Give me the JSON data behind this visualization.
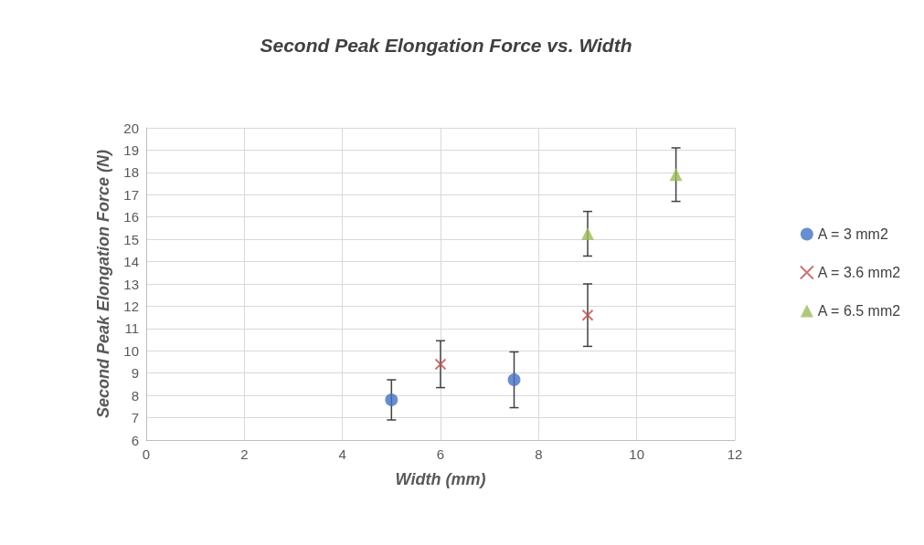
{
  "chart_data": {
    "type": "scatter",
    "title": "Second Peak Elongation Force vs. Width",
    "xlabel": "Width (mm)",
    "ylabel": "Second Peak Elongation Force (N)",
    "series": [
      {
        "name": "A = 3 mm2",
        "color": "#4472c4",
        "marker": "circle",
        "x": [
          5,
          7.5
        ],
        "values": [
          7.8,
          8.7
        ],
        "errors": [
          0.9,
          1.25
        ]
      },
      {
        "name": "A = 3.6 mm2",
        "color": "#c0504d",
        "marker": "cross",
        "x": [
          6,
          9
        ],
        "values": [
          9.4,
          11.6
        ],
        "errors": [
          1.05,
          1.4
        ]
      },
      {
        "name": "A = 6.5 mm2",
        "color": "#9bbb59",
        "marker": "triangle",
        "x": [
          9,
          10.8
        ],
        "values": [
          15.25,
          17.9
        ],
        "errors": [
          1.0,
          1.2
        ]
      }
    ],
    "xlim": [
      0,
      12
    ],
    "xticks": [
      0,
      2,
      4,
      6,
      8,
      10,
      12
    ],
    "ylim": [
      6,
      20
    ],
    "yticks": [
      6,
      7,
      8,
      9,
      10,
      11,
      12,
      13,
      14,
      15,
      16,
      17,
      18,
      19,
      20
    ],
    "grid": true,
    "legend": "right"
  }
}
